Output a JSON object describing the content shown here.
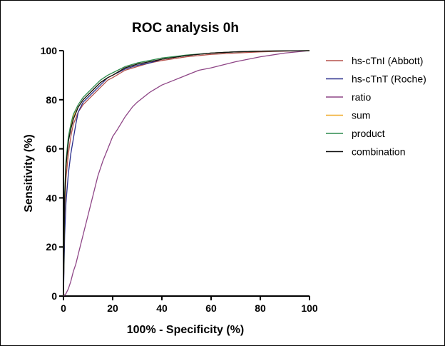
{
  "chart_data": {
    "type": "line",
    "title": "ROC analysis 0h",
    "xlabel": "100% - Specificity (%)",
    "ylabel": "Sensitivity (%)",
    "xlim": [
      0,
      100
    ],
    "ylim": [
      0,
      100
    ],
    "xticks": [
      "0",
      "20",
      "40",
      "60",
      "80",
      "100"
    ],
    "yticks": [
      "0",
      "20",
      "40",
      "60",
      "80",
      "100"
    ],
    "grid": false,
    "legend_position": "right",
    "series": [
      {
        "name": "hs-cTnI (Abbott)",
        "color": "#b5524c",
        "x": [
          0,
          0.5,
          1,
          2,
          3,
          4,
          6,
          8,
          10,
          12,
          15,
          18,
          20,
          25,
          30,
          35,
          40,
          50,
          60,
          70,
          80,
          90,
          100
        ],
        "y": [
          0,
          35,
          48,
          58,
          65,
          70,
          75,
          78,
          80,
          82,
          85,
          88,
          89,
          92,
          93.5,
          95,
          96,
          97.5,
          98.5,
          99,
          99.5,
          99.8,
          100
        ]
      },
      {
        "name": "hs-cTnT (Roche)",
        "color": "#2a2e8c",
        "x": [
          0,
          0.5,
          1,
          2,
          3,
          4,
          5,
          6,
          8,
          10,
          12,
          15,
          18,
          20,
          25,
          30,
          35,
          40,
          50,
          60,
          70,
          80,
          90,
          100
        ],
        "y": [
          0,
          25,
          38,
          50,
          58,
          64,
          70,
          75,
          79,
          81,
          83,
          86,
          89,
          90,
          92.5,
          94,
          95,
          96.5,
          98,
          99,
          99.5,
          99.8,
          99.9,
          100
        ]
      },
      {
        "name": "ratio",
        "color": "#8e4586",
        "x": [
          0,
          1,
          2,
          3,
          4,
          5,
          6,
          8,
          10,
          12,
          14,
          16,
          18,
          20,
          22,
          25,
          28,
          30,
          35,
          40,
          45,
          50,
          55,
          60,
          70,
          80,
          90,
          100
        ],
        "y": [
          0,
          1,
          3,
          6,
          10,
          13,
          17,
          25,
          33,
          41,
          49,
          55,
          60,
          65,
          68,
          73,
          77,
          79,
          83,
          86,
          88,
          90,
          92,
          93,
          95.5,
          97.5,
          99,
          100
        ]
      },
      {
        "name": "sum",
        "color": "#f0a928",
        "x": [
          0,
          0.5,
          1,
          2,
          3,
          4,
          6,
          8,
          10,
          12,
          15,
          18,
          20,
          25,
          30,
          35,
          40,
          50,
          60,
          70,
          80,
          90,
          100
        ],
        "y": [
          0,
          38,
          52,
          63,
          69,
          73,
          77,
          80,
          82,
          84,
          87,
          89,
          90,
          93,
          94.5,
          95.5,
          96.5,
          98,
          99,
          99.5,
          99.8,
          99.9,
          100
        ]
      },
      {
        "name": "product",
        "color": "#2e8b4e",
        "x": [
          0,
          0.5,
          1,
          2,
          3,
          4,
          6,
          8,
          10,
          12,
          15,
          18,
          20,
          25,
          30,
          35,
          40,
          50,
          60,
          70,
          80,
          90,
          100
        ],
        "y": [
          0,
          42,
          55,
          65,
          70,
          74,
          78,
          81,
          83,
          85,
          88,
          90,
          91,
          93.5,
          95,
          96,
          97,
          98.2,
          99,
          99.5,
          99.8,
          99.9,
          100
        ]
      },
      {
        "name": "combination",
        "color": "#111111",
        "x": [
          0,
          0.5,
          1,
          2,
          3,
          4,
          6,
          8,
          10,
          12,
          15,
          18,
          20,
          25,
          30,
          35,
          40,
          50,
          60,
          70,
          80,
          90,
          100
        ],
        "y": [
          0,
          40,
          53,
          63,
          68,
          72,
          77,
          80,
          82,
          84,
          87,
          89,
          90,
          93,
          94.5,
          95.5,
          96.5,
          98,
          99,
          99.5,
          99.8,
          99.9,
          100
        ]
      }
    ]
  }
}
